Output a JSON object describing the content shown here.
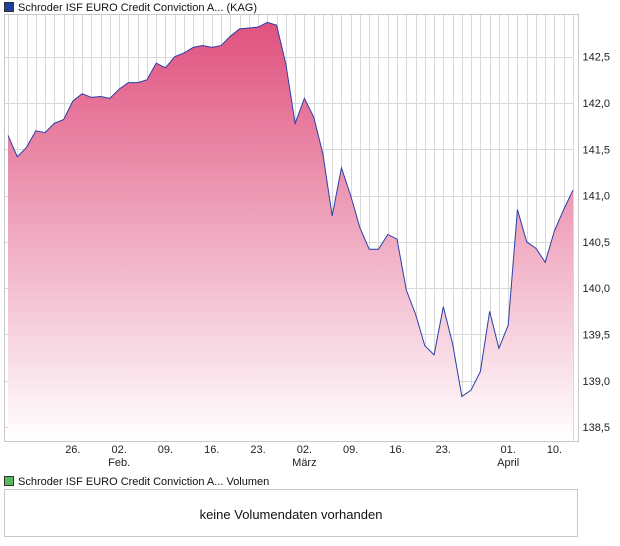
{
  "legend": {
    "price_label": "Schroder ISF EURO Credit Conviction A... (KAG)",
    "price_color": "#1f3f9f",
    "volume_label": "Schroder ISF EURO Credit Conviction A... Volumen",
    "volume_color": "#5cb85c"
  },
  "volume": {
    "message": "keine Volumendaten vorhanden"
  },
  "colors": {
    "line": "#2a3fa8",
    "fill_top": "#e0517f",
    "fill_bottom": "#ffffff",
    "grid": "#d8d8d8"
  },
  "chart_data": {
    "type": "area",
    "title": "",
    "ylim": [
      138.35,
      142.95
    ],
    "y_ticks": [
      "138,5",
      "139,0",
      "139,5",
      "140,0",
      "140,5",
      "141,0",
      "141,5",
      "142,0",
      "142,5"
    ],
    "y_tick_values": [
      138.5,
      139.0,
      139.5,
      140.0,
      140.5,
      141.0,
      141.5,
      142.0,
      142.5
    ],
    "x_ticks": [
      {
        "label": "26.",
        "sub": "",
        "index": 7
      },
      {
        "label": "02.",
        "sub": "Feb.",
        "index": 12
      },
      {
        "label": "09.",
        "sub": "",
        "index": 17
      },
      {
        "label": "16.",
        "sub": "",
        "index": 22
      },
      {
        "label": "23.",
        "sub": "",
        "index": 27
      },
      {
        "label": "02.",
        "sub": "März",
        "index": 32
      },
      {
        "label": "09.",
        "sub": "",
        "index": 37
      },
      {
        "label": "16.",
        "sub": "",
        "index": 42
      },
      {
        "label": "23.",
        "sub": "",
        "index": 47
      },
      {
        "label": "01.",
        "sub": "April",
        "index": 54
      },
      {
        "label": "10.",
        "sub": "",
        "index": 59
      }
    ],
    "series": [
      {
        "values": [
          141.65,
          141.42,
          141.52,
          141.7,
          141.68,
          141.78,
          141.82,
          142.02,
          142.1,
          142.06,
          142.07,
          142.05,
          142.15,
          142.22,
          142.22,
          142.25,
          142.43,
          142.38,
          142.5,
          142.54,
          142.6,
          142.62,
          142.6,
          142.62,
          142.72,
          142.8,
          142.81,
          142.82,
          142.87,
          142.84,
          142.42,
          141.78,
          142.05,
          141.85,
          141.45,
          140.78,
          141.3,
          141.0,
          140.65,
          140.42,
          140.42,
          140.58,
          140.53,
          139.98,
          139.72,
          139.38,
          139.28,
          139.8,
          139.4,
          138.83,
          138.9,
          139.1,
          139.75,
          139.35,
          139.6,
          140.85,
          140.5,
          140.43,
          140.28,
          140.62,
          140.85,
          141.06
        ]
      }
    ]
  }
}
